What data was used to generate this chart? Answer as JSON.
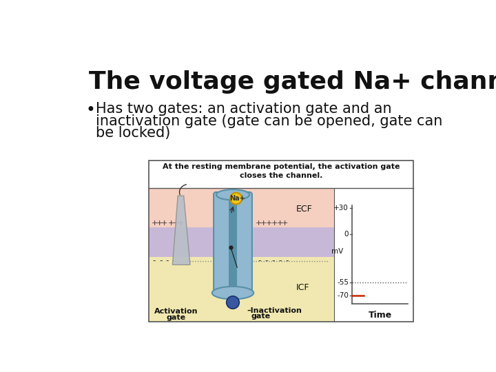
{
  "title": "The voltage gated Na+ channels",
  "bullet_line1": "Has two gates: an activation gate and an",
  "bullet_line2": "inactivation gate (gate can be opened, gate can",
  "bullet_line3": "be locked)",
  "box_caption_line1": "At the resting membrane potential, the activation gate",
  "box_caption_line2": "closes the channel.",
  "ecf_label": "ECF",
  "icf_label": "ICF",
  "na_label": "Na+",
  "activation_label_line1": "Activation",
  "activation_label_line2": "gate",
  "inactivation_label_line1": "Inactivation",
  "inactivation_label_line2": "gate",
  "time_label": "Time",
  "mv_label": "mV",
  "v30": "+30",
  "v0": "0",
  "v55": "-55",
  "v70": "-70",
  "bg_color": "#ffffff",
  "ecf_bg": "#f5cfc0",
  "membrane_color": "#c8b8d8",
  "icf_bg": "#f0e8b0",
  "channel_body_color": "#90b8d0",
  "channel_dark": "#5890a8",
  "activation_gate_color": "#b8bfc8",
  "na_ion_color": "#f0c818",
  "na_ion_edge": "#c89000",
  "inactivation_ball_color": "#3858a0",
  "inactivation_ball_edge": "#1a3070",
  "box_border_color": "#555555",
  "graph_line_color": "#cc2200",
  "dotted_line_color": "#555555",
  "plus_color": "#333333",
  "minus_color": "#333333",
  "text_color": "#111111",
  "title_fontsize": 26,
  "bullet_fontsize": 15,
  "caption_fontsize": 8,
  "label_fontsize": 8,
  "charge_fontsize": 8
}
